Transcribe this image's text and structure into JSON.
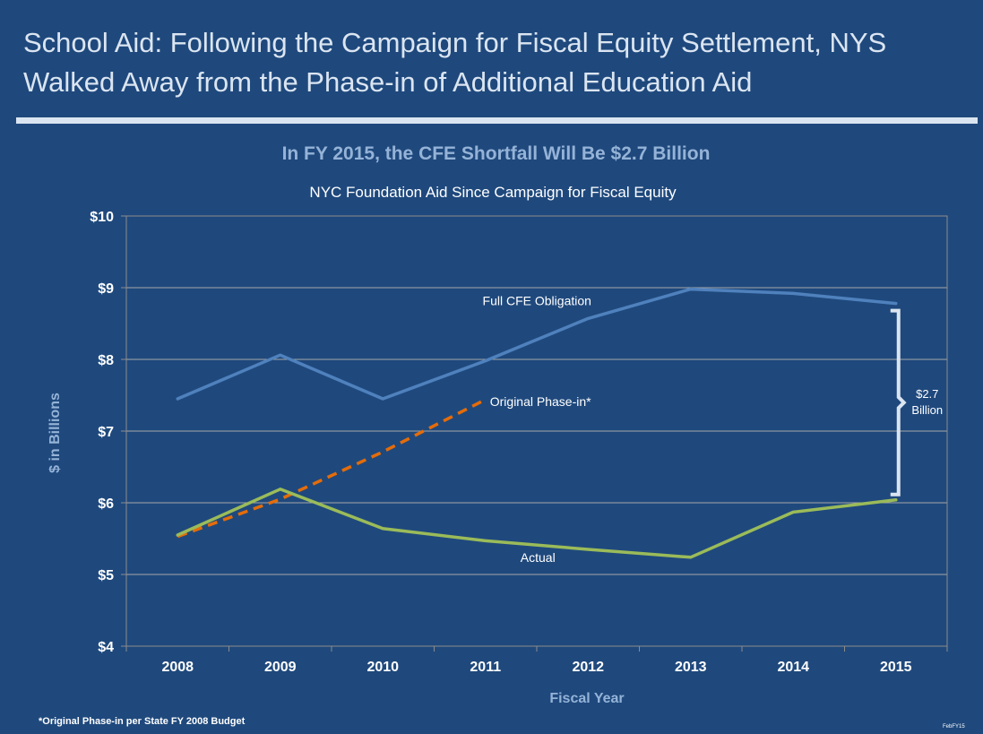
{
  "slide": {
    "title": "School Aid: Following the Campaign for Fiscal Equity Settlement, NYS Walked Away from the Phase-in of Additional Education Aid",
    "subtitle": "In FY 2015, the CFE Shortfall Will Be $2.7 Billion",
    "footnote": "*Original Phase-in per State FY 2008 Budget",
    "corner_code": "FebFY15"
  },
  "chart_data": {
    "type": "line",
    "title": "NYC Foundation Aid Since Campaign for Fiscal Equity",
    "xlabel": "Fiscal Year",
    "ylabel": "$ in Billions",
    "categories": [
      "2008",
      "2009",
      "2010",
      "2011",
      "2012",
      "2013",
      "2014",
      "2015"
    ],
    "ylim": [
      4,
      10
    ],
    "yticks": [
      4,
      5,
      6,
      7,
      8,
      9,
      10
    ],
    "ytick_labels": [
      "$4",
      "$5",
      "$6",
      "$7",
      "$8",
      "$9",
      "$10"
    ],
    "grid": true,
    "series": [
      {
        "name": "Full CFE Obligation",
        "color": "#4f81bd",
        "style": "solid",
        "values": [
          7.45,
          8.06,
          7.45,
          7.98,
          8.57,
          8.98,
          8.92,
          8.78
        ]
      },
      {
        "name": "Original Phase-in*",
        "color": "#e46c0a",
        "style": "dashed",
        "values": [
          5.53,
          6.05,
          6.71,
          7.44,
          null,
          null,
          null,
          null
        ]
      },
      {
        "name": "Actual",
        "color": "#9bbb59",
        "style": "solid",
        "values": [
          5.55,
          6.19,
          5.64,
          5.47,
          5.35,
          5.24,
          5.87,
          6.04
        ]
      }
    ],
    "annotations": [
      {
        "text": "$2.7",
        "line2": "Billion",
        "category": "2015",
        "from": 6.04,
        "to": 8.78
      }
    ]
  }
}
